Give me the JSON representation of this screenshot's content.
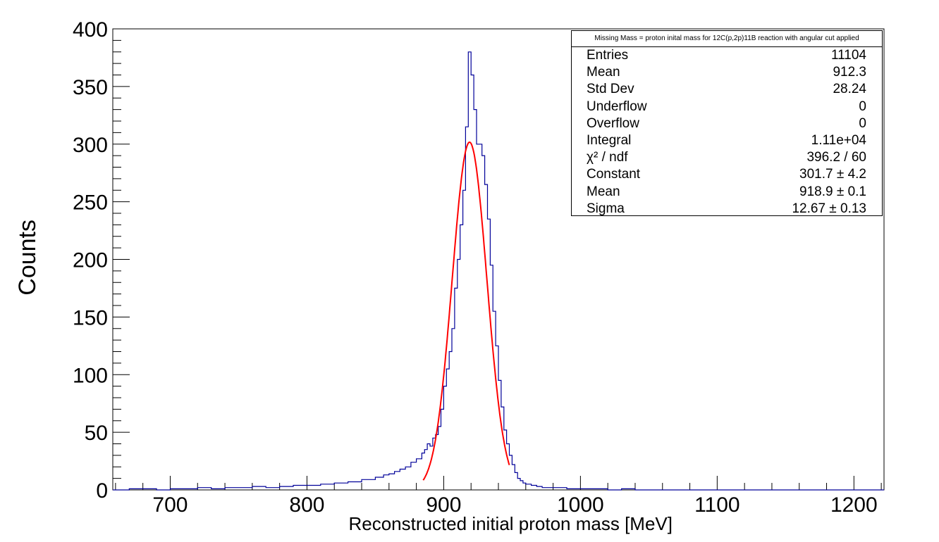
{
  "chart_data": {
    "type": "histogram",
    "xlabel": "Reconstructed initial proton mass [MeV]",
    "ylabel": "Counts",
    "xlim": [
      658,
      1222
    ],
    "ylim": [
      0,
      400
    ],
    "x_ticks": [
      700,
      800,
      900,
      1000,
      1100,
      1200
    ],
    "y_ticks": [
      0,
      50,
      100,
      150,
      200,
      250,
      300,
      350,
      400
    ],
    "grid": false,
    "histogram": {
      "color": "#000099",
      "bin_width": 2,
      "bins": [
        [
          658,
          0
        ],
        [
          660,
          0
        ],
        [
          670,
          1
        ],
        [
          680,
          1
        ],
        [
          690,
          0
        ],
        [
          700,
          1
        ],
        [
          710,
          1
        ],
        [
          720,
          2
        ],
        [
          730,
          1
        ],
        [
          740,
          2
        ],
        [
          750,
          2
        ],
        [
          760,
          3
        ],
        [
          770,
          2
        ],
        [
          780,
          3
        ],
        [
          790,
          4
        ],
        [
          800,
          4
        ],
        [
          810,
          5
        ],
        [
          820,
          6
        ],
        [
          830,
          7
        ],
        [
          840,
          9
        ],
        [
          850,
          11
        ],
        [
          856,
          13
        ],
        [
          860,
          14
        ],
        [
          864,
          16
        ],
        [
          868,
          18
        ],
        [
          872,
          20
        ],
        [
          876,
          24
        ],
        [
          880,
          27
        ],
        [
          884,
          32
        ],
        [
          886,
          35
        ],
        [
          888,
          40
        ],
        [
          890,
          38
        ],
        [
          892,
          45
        ],
        [
          894,
          48
        ],
        [
          896,
          55
        ],
        [
          898,
          70
        ],
        [
          900,
          90
        ],
        [
          902,
          105
        ],
        [
          904,
          120
        ],
        [
          906,
          140
        ],
        [
          908,
          175
        ],
        [
          910,
          200
        ],
        [
          912,
          230
        ],
        [
          914,
          260
        ],
        [
          916,
          315
        ],
        [
          918,
          380
        ],
        [
          920,
          360
        ],
        [
          922,
          330
        ],
        [
          924,
          300
        ],
        [
          926,
          300
        ],
        [
          928,
          290
        ],
        [
          930,
          265
        ],
        [
          932,
          235
        ],
        [
          934,
          195
        ],
        [
          936,
          155
        ],
        [
          938,
          125
        ],
        [
          940,
          95
        ],
        [
          942,
          72
        ],
        [
          944,
          52
        ],
        [
          946,
          40
        ],
        [
          948,
          30
        ],
        [
          950,
          22
        ],
        [
          952,
          15
        ],
        [
          954,
          10
        ],
        [
          956,
          8
        ],
        [
          958,
          6
        ],
        [
          960,
          5
        ],
        [
          964,
          4
        ],
        [
          968,
          3
        ],
        [
          972,
          2
        ],
        [
          980,
          2
        ],
        [
          990,
          1
        ],
        [
          1000,
          1
        ],
        [
          1010,
          1
        ],
        [
          1020,
          0
        ],
        [
          1030,
          1
        ],
        [
          1040,
          0
        ],
        [
          1060,
          0
        ],
        [
          1100,
          0
        ],
        [
          1150,
          0
        ],
        [
          1200,
          0
        ],
        [
          1220,
          0
        ]
      ]
    },
    "fit": {
      "type": "gaus",
      "color": "#ff0000",
      "constant": 301.7,
      "mean": 918.9,
      "sigma": 12.67,
      "range": [
        885,
        948
      ]
    }
  },
  "stats": {
    "title": "Missing Mass = proton inital mass for 12C(p,2p)11B reaction with angular cut applied",
    "rows": [
      {
        "label": "Entries",
        "value": "11104"
      },
      {
        "label": "Mean",
        "value": "912.3"
      },
      {
        "label": "Std Dev",
        "value": "28.24"
      },
      {
        "label": "Underflow",
        "value": "0"
      },
      {
        "label": "Overflow",
        "value": "0"
      },
      {
        "label": "Integral",
        "value": "1.11e+04"
      },
      {
        "label": "χ² / ndf",
        "value": "396.2 / 60"
      },
      {
        "label": "Constant",
        "value": "301.7 ± 4.2"
      },
      {
        "label": "Mean",
        "value": "918.9 ± 0.1"
      },
      {
        "label": "Sigma",
        "value": "12.67 ± 0.13"
      }
    ]
  }
}
